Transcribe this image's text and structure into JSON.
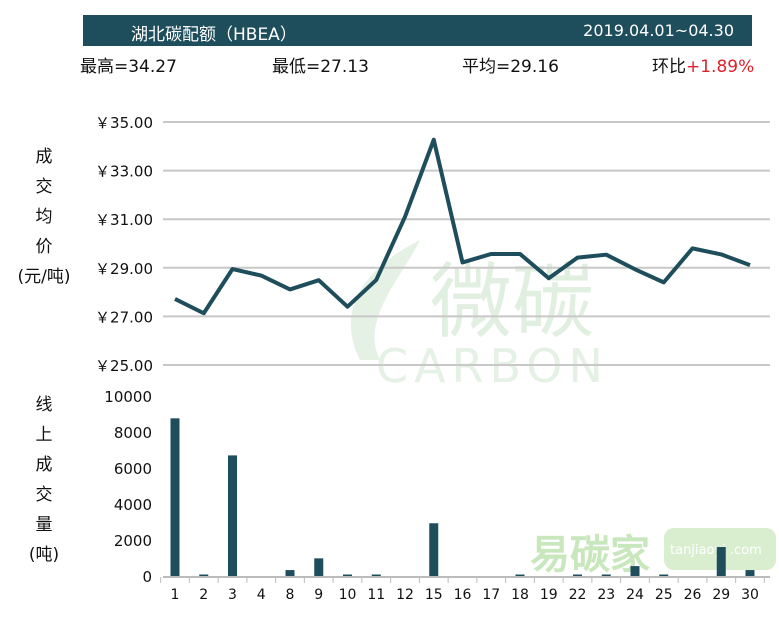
{
  "header": {
    "title": "湖北碳配额（HBEA）",
    "period": "2019.04.01~04.30"
  },
  "stats": {
    "high": "最高=34.27",
    "low": "最低=27.13",
    "avg": "平均=29.16",
    "mom_label": "环比",
    "mom_value": "+1.89%"
  },
  "watermarks": {
    "logo1_cn": "微碳",
    "logo1_en": "CARBON",
    "logo2_cn": "易碳家",
    "logo2_en": "tanjiaoyi .com"
  },
  "colors": {
    "series": "#1e4d5c",
    "grid": "#c8c8c8",
    "up": "#e0202a"
  },
  "chart_data": [
    {
      "type": "line",
      "ylabel": "成交均价（元/吨）",
      "ylabel_chars": [
        "成",
        "交",
        "均",
        "价",
        "(元/吨)"
      ],
      "ylim": [
        25,
        35
      ],
      "yticks": [
        "￥25.00",
        "￥27.00",
        "￥29.00",
        "￥31.00",
        "￥33.00",
        "￥35.00"
      ],
      "grid": true,
      "x": [
        "1",
        "2",
        "3",
        "4",
        "8",
        "9",
        "10",
        "11",
        "12",
        "15",
        "16",
        "17",
        "18",
        "19",
        "22",
        "23",
        "24",
        "25",
        "26",
        "29",
        "30"
      ],
      "values": [
        27.72,
        27.13,
        28.95,
        28.68,
        28.11,
        28.49,
        27.4,
        28.5,
        31.1,
        34.27,
        29.22,
        29.57,
        29.57,
        28.57,
        29.42,
        29.54,
        28.94,
        28.4,
        29.8,
        29.55,
        29.11
      ]
    },
    {
      "type": "bar",
      "ylabel": "线上成交量（吨）",
      "ylabel_chars": [
        "线",
        "上",
        "成",
        "交",
        "量",
        "(吨)"
      ],
      "ylim": [
        0,
        10000
      ],
      "yticks": [
        "0",
        "2000",
        "4000",
        "6000",
        "8000",
        "10000"
      ],
      "grid": false,
      "categories": [
        "1",
        "2",
        "3",
        "4",
        "8",
        "9",
        "10",
        "11",
        "12",
        "15",
        "16",
        "17",
        "18",
        "19",
        "22",
        "23",
        "24",
        "25",
        "26",
        "29",
        "30"
      ],
      "values": [
        8760,
        50,
        6700,
        0,
        330,
        980,
        40,
        40,
        0,
        2930,
        0,
        0,
        40,
        0,
        30,
        80,
        550,
        30,
        0,
        1610,
        330
      ]
    }
  ]
}
